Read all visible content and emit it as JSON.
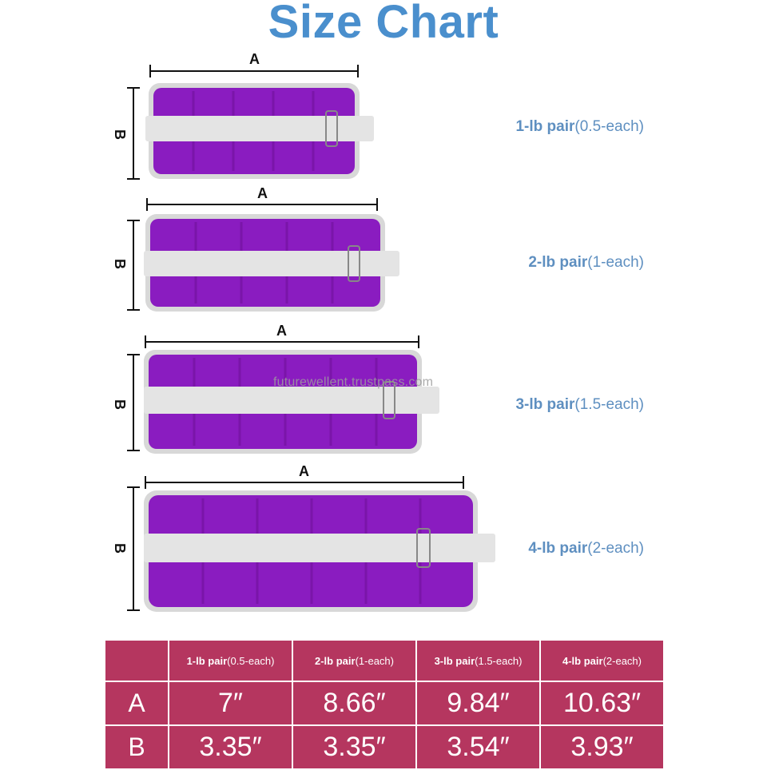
{
  "title": "Size Chart",
  "watermark": "futurewellent.trustpass.com",
  "dimension_labels": {
    "length": "A",
    "width": "B"
  },
  "products": [
    {
      "weight": "1-lb pair",
      "each": "(0.5-each)"
    },
    {
      "weight": "2-lb pair",
      "each": "(1-each)"
    },
    {
      "weight": "3-lb pair",
      "each": "(1.5-each)"
    },
    {
      "weight": "4-lb pair",
      "each": "(2-each)"
    }
  ],
  "table": {
    "header": [
      {
        "weight": "1-lb pair",
        "each": "(0.5-each)"
      },
      {
        "weight": "2-lb pair",
        "each": "(1-each)"
      },
      {
        "weight": "3-lb pair",
        "each": "(1.5-each)"
      },
      {
        "weight": "4-lb pair",
        "each": "(2-each)"
      }
    ],
    "rows": [
      {
        "label": "A",
        "values": [
          "7″",
          "8.66″",
          "9.84″",
          "10.63″"
        ]
      },
      {
        "label": "B",
        "values": [
          "3.35″",
          "3.35″",
          "3.54″",
          "3.93″"
        ]
      }
    ]
  },
  "colors": {
    "title": "#4a8fcd",
    "label": "#5e8fc0",
    "weight_fabric": "#8a1cc0",
    "strap": "#e4e4e4",
    "table_bg": "#b5365f"
  }
}
